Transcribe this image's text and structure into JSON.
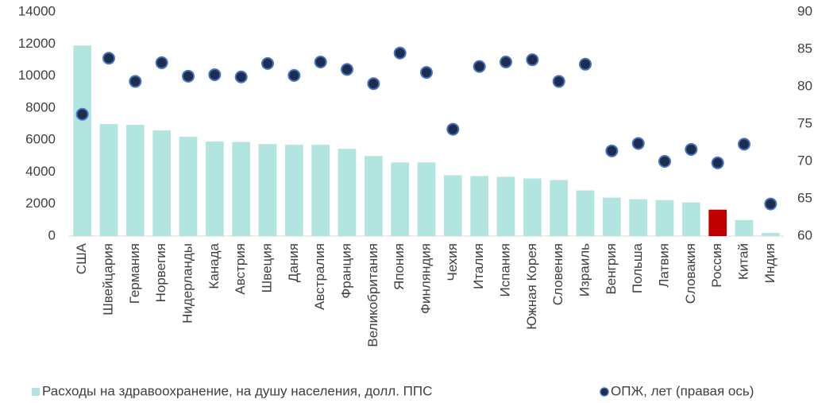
{
  "chart_data": {
    "type": "bar+scatter",
    "categories": [
      "США",
      "Швейцария",
      "Германия",
      "Норвегия",
      "Нидерланды",
      "Канада",
      "Австрия",
      "Швеция",
      "Дания",
      "Австралия",
      "Франция",
      "Великобритания",
      "Япония",
      "Финляндия",
      "Чехия",
      "Италия",
      "Испания",
      "Южная Корея",
      "Словения",
      "Израиль",
      "Венгрия",
      "Польша",
      "Латвия",
      "Словакия",
      "Россия",
      "Китай",
      "Индия"
    ],
    "series": [
      {
        "name": "Расходы на здравоохранение, на душу населения, долл. ППС",
        "type": "bar",
        "color": "#b2e4e0",
        "colors": [
          "#b2e4e0",
          "#b2e4e0",
          "#b2e4e0",
          "#b2e4e0",
          "#b2e4e0",
          "#b2e4e0",
          "#b2e4e0",
          "#b2e4e0",
          "#b2e4e0",
          "#b2e4e0",
          "#b2e4e0",
          "#b2e4e0",
          "#b2e4e0",
          "#b2e4e0",
          "#b2e4e0",
          "#b2e4e0",
          "#b2e4e0",
          "#b2e4e0",
          "#b2e4e0",
          "#b2e4e0",
          "#b2e4e0",
          "#b2e4e0",
          "#b2e4e0",
          "#b2e4e0",
          "#c00000",
          "#b2e4e0",
          "#b2e4e0"
        ],
        "values": [
          11900,
          7000,
          6950,
          6600,
          6200,
          5900,
          5880,
          5750,
          5700,
          5700,
          5450,
          5000,
          4600,
          4600,
          3800,
          3750,
          3700,
          3600,
          3500,
          2850,
          2400,
          2300,
          2250,
          2100,
          1650,
          1000,
          200
        ]
      },
      {
        "name": "ОПЖ, лет (правая ось)",
        "type": "scatter",
        "axis": "y2",
        "color": "#1f2d4d",
        "edge_color": "#4472c4",
        "values": [
          76.3,
          83.8,
          80.7,
          83.2,
          81.4,
          81.6,
          81.3,
          83.1,
          81.5,
          83.3,
          82.3,
          80.4,
          84.5,
          81.9,
          74.3,
          82.7,
          83.3,
          83.6,
          80.7,
          83.0,
          71.4,
          72.4,
          70.0,
          71.6,
          69.8,
          72.3,
          64.3
        ]
      }
    ],
    "ylim": [
      0,
      14000
    ],
    "yticks": [
      0,
      2000,
      4000,
      6000,
      8000,
      10000,
      12000,
      14000
    ],
    "y2lim": [
      60,
      90
    ],
    "y2ticks": [
      60,
      65,
      70,
      75,
      80,
      85,
      90
    ],
    "legend": "bottom"
  }
}
